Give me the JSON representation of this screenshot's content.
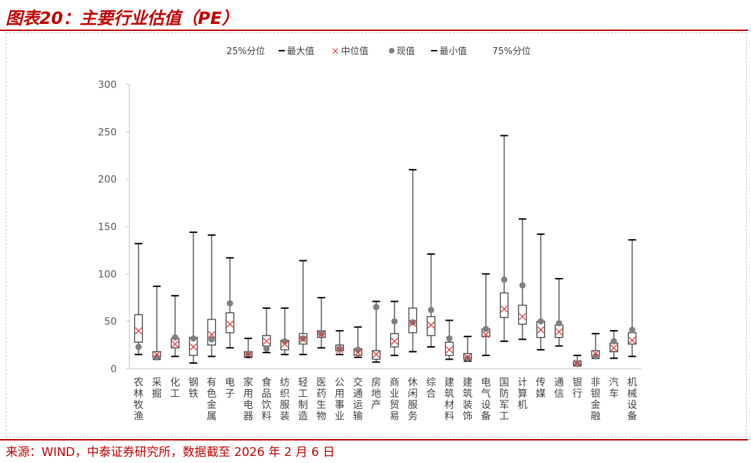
{
  "header": {
    "title": "图表20：主要行业估值（PE）"
  },
  "footer": {
    "source": "来源：WIND，中泰证券研究所，数据截至 2026 年 2 月 6 日"
  },
  "colors": {
    "accent": "#c00000",
    "box": "#404040",
    "median": "#e04040",
    "current": "#7f7f7f"
  },
  "chart_data": {
    "type": "box",
    "title": "主要行业估值（PE）",
    "legend": [
      "25%分位",
      "最大值",
      "中位值",
      "现值",
      "最小值",
      "75%分位"
    ],
    "legend_position": "top",
    "ylim": [
      0,
      300
    ],
    "yticks": [
      0,
      50,
      100,
      150,
      200,
      250,
      300
    ],
    "grid": false,
    "categories": [
      "农林牧渔",
      "采掘",
      "化工",
      "钢铁",
      "有色金属",
      "电子",
      "家用电器",
      "食品饮料",
      "纺织服装",
      "轻工制造",
      "医药生物",
      "公用事业",
      "交通运输",
      "房地产",
      "商业贸易",
      "休闲服务",
      "综合",
      "建筑材料",
      "建筑装饰",
      "电气设备",
      "国防军工",
      "计算机",
      "传媒",
      "通信",
      "银行",
      "非银金融",
      "汽车",
      "机械设备"
    ],
    "max": [
      132,
      87,
      77,
      144,
      141,
      117,
      32,
      64,
      64,
      114,
      75,
      40,
      44,
      71,
      71,
      210,
      121,
      51,
      34,
      100,
      246,
      158,
      142,
      95,
      14,
      37,
      40,
      136
    ],
    "q75": [
      57,
      18,
      32,
      33,
      52,
      59,
      18,
      35,
      30,
      37,
      40,
      25,
      21,
      19,
      37,
      64,
      55,
      28,
      16,
      42,
      80,
      67,
      50,
      46,
      8,
      19,
      27,
      38
    ],
    "median": [
      40,
      15,
      26,
      23,
      36,
      47,
      15,
      29,
      26,
      31,
      36,
      20,
      17,
      15,
      29,
      48,
      46,
      20,
      12,
      36,
      63,
      55,
      41,
      39,
      6,
      16,
      22,
      30
    ],
    "q25": [
      28,
      12,
      22,
      14,
      25,
      38,
      13,
      24,
      20,
      26,
      33,
      19,
      14,
      10,
      23,
      38,
      35,
      14,
      10,
      34,
      54,
      47,
      33,
      33,
      4,
      13,
      18,
      26
    ],
    "min": [
      15,
      10,
      13,
      6,
      13,
      22,
      12,
      17,
      15,
      15,
      22,
      15,
      12,
      7,
      14,
      18,
      23,
      10,
      8,
      14,
      29,
      31,
      20,
      24,
      3,
      11,
      11,
      13
    ],
    "current": [
      23,
      12,
      33,
      32,
      31,
      69,
      16,
      21,
      29,
      32,
      37,
      21,
      20,
      65,
      50,
      49,
      62,
      32,
      11,
      42,
      94,
      88,
      50,
      48,
      5,
      13,
      29,
      41
    ]
  }
}
